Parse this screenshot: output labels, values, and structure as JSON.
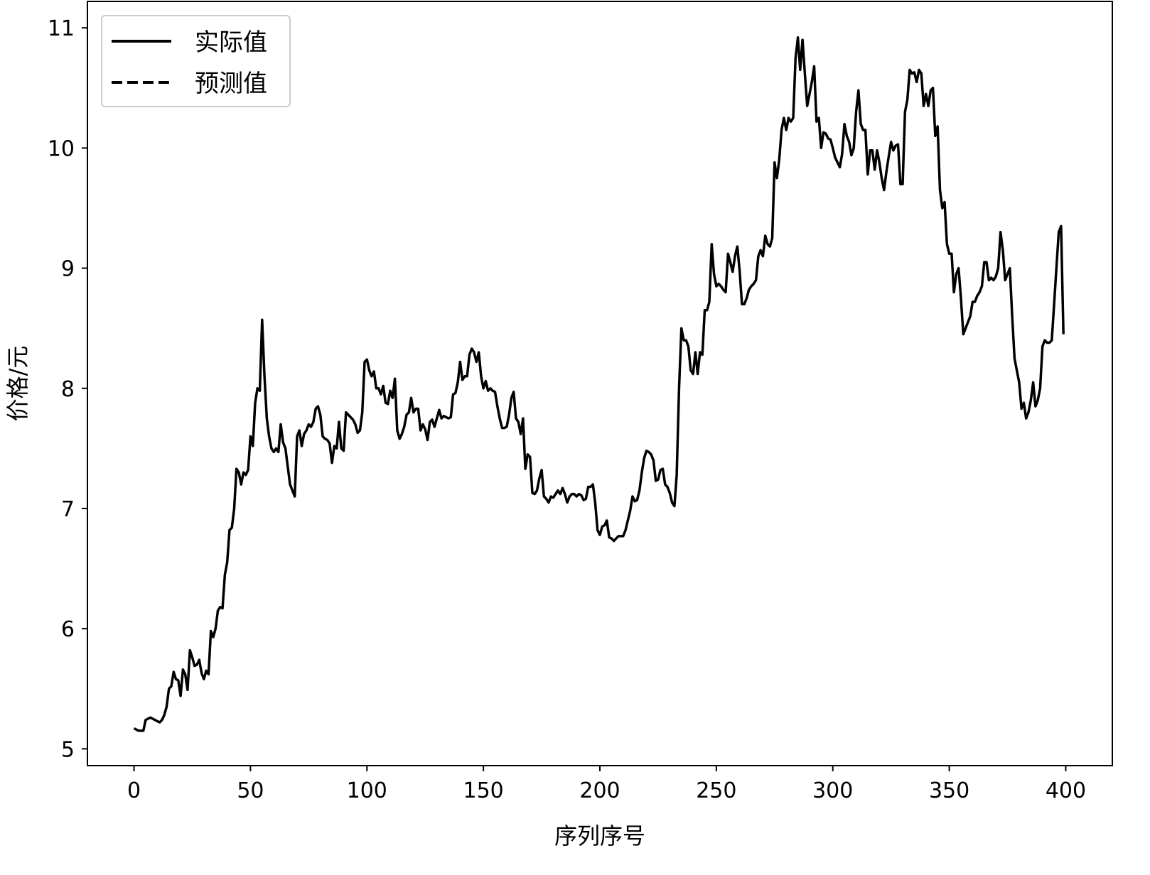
{
  "chart_data": {
    "type": "line",
    "title": "",
    "xlabel": "序列序号",
    "ylabel": "价格/元",
    "xlim": [
      -20,
      420
    ],
    "ylim": [
      4.86,
      11.22
    ],
    "xticks": [
      0,
      50,
      100,
      150,
      200,
      250,
      300,
      350,
      400
    ],
    "yticks": [
      5,
      6,
      7,
      8,
      9,
      10,
      11
    ],
    "grid": false,
    "legend_position": "top-left",
    "legend": [
      {
        "label": "实际值",
        "style": "solid"
      },
      {
        "label": "预测值",
        "style": "dashed"
      }
    ],
    "line_color": "#000000",
    "series": [
      {
        "name": "实际值",
        "style": "solid",
        "x_start": 0,
        "values": [
          5.17,
          5.16,
          5.15,
          5.15,
          5.15,
          5.24,
          5.25,
          5.26,
          5.25,
          5.24,
          5.23,
          5.22,
          5.24,
          5.28,
          5.35,
          5.5,
          5.52,
          5.64,
          5.58,
          5.57,
          5.44,
          5.66,
          5.62,
          5.49,
          5.82,
          5.76,
          5.69,
          5.7,
          5.74,
          5.63,
          5.58,
          5.65,
          5.62,
          5.98,
          5.93,
          6.0,
          6.15,
          6.18,
          6.17,
          6.45,
          6.55,
          6.82,
          6.84,
          7.0,
          7.33,
          7.3,
          7.2,
          7.3,
          7.28,
          7.32,
          7.6,
          7.52,
          7.88,
          8.0,
          7.98,
          8.57,
          8.1,
          7.75,
          7.6,
          7.5,
          7.47,
          7.5,
          7.47,
          7.7,
          7.55,
          7.5,
          7.35,
          7.2,
          7.15,
          7.1,
          7.6,
          7.65,
          7.52,
          7.62,
          7.65,
          7.7,
          7.68,
          7.72,
          7.83,
          7.85,
          7.78,
          7.6,
          7.58,
          7.57,
          7.54,
          7.38,
          7.52,
          7.5,
          7.72,
          7.5,
          7.48,
          7.8,
          7.78,
          7.76,
          7.74,
          7.7,
          7.63,
          7.65,
          7.8,
          8.22,
          8.24,
          8.15,
          8.1,
          8.14,
          8.0,
          8.0,
          7.95,
          8.02,
          7.88,
          7.87,
          7.98,
          7.92,
          8.08,
          7.65,
          7.58,
          7.62,
          7.68,
          7.78,
          7.8,
          7.92,
          7.8,
          7.83,
          7.83,
          7.65,
          7.7,
          7.66,
          7.57,
          7.72,
          7.74,
          7.68,
          7.75,
          7.82,
          7.75,
          7.77,
          7.76,
          7.75,
          7.76,
          7.95,
          7.96,
          8.05,
          8.22,
          8.07,
          8.1,
          8.1,
          8.28,
          8.33,
          8.3,
          8.22,
          8.3,
          8.1,
          8.0,
          8.06,
          7.98,
          8.0,
          7.98,
          7.97,
          7.85,
          7.75,
          7.67,
          7.67,
          7.68,
          7.78,
          7.92,
          7.97,
          7.75,
          7.72,
          7.62,
          7.75,
          7.33,
          7.45,
          7.43,
          7.13,
          7.12,
          7.15,
          7.25,
          7.32,
          7.1,
          7.08,
          7.05,
          7.1,
          7.09,
          7.12,
          7.15,
          7.12,
          7.17,
          7.12,
          7.05,
          7.1,
          7.12,
          7.12,
          7.1,
          7.12,
          7.11,
          7.07,
          7.08,
          7.18,
          7.18,
          7.2,
          7.05,
          6.82,
          6.78,
          6.85,
          6.86,
          6.9,
          6.76,
          6.75,
          6.73,
          6.75,
          6.77,
          6.77,
          6.77,
          6.82,
          6.9,
          6.98,
          7.1,
          7.06,
          7.07,
          7.15,
          7.3,
          7.42,
          7.48,
          7.47,
          7.45,
          7.4,
          7.23,
          7.24,
          7.32,
          7.33,
          7.2,
          7.18,
          7.13,
          7.05,
          7.02,
          7.28,
          8.0,
          8.5,
          8.4,
          8.4,
          8.35,
          8.15,
          8.12,
          8.3,
          8.12,
          8.3,
          8.28,
          8.65,
          8.65,
          8.72,
          9.2,
          8.95,
          8.85,
          8.87,
          8.85,
          8.82,
          8.8,
          9.12,
          9.05,
          8.97,
          9.1,
          9.18,
          8.98,
          8.7,
          8.7,
          8.75,
          8.82,
          8.85,
          8.87,
          8.9,
          9.1,
          9.15,
          9.1,
          9.27,
          9.2,
          9.18,
          9.25,
          9.88,
          9.75,
          9.9,
          10.15,
          10.25,
          10.15,
          10.25,
          10.22,
          10.25,
          10.75,
          10.92,
          10.65,
          10.9,
          10.62,
          10.35,
          10.45,
          10.55,
          10.68,
          10.22,
          10.25,
          10.0,
          10.13,
          10.12,
          10.08,
          10.07,
          10.0,
          9.92,
          9.88,
          9.84,
          9.95,
          10.2,
          10.1,
          10.05,
          9.94,
          10.0,
          10.3,
          10.48,
          10.2,
          10.15,
          10.15,
          9.78,
          9.98,
          9.98,
          9.82,
          9.98,
          9.88,
          9.75,
          9.65,
          9.8,
          9.93,
          10.05,
          9.98,
          10.02,
          10.03,
          9.7,
          9.7,
          10.3,
          10.4,
          10.65,
          10.62,
          10.63,
          10.55,
          10.65,
          10.62,
          10.35,
          10.45,
          10.35,
          10.48,
          10.5,
          10.1,
          10.18,
          9.65,
          9.5,
          9.55,
          9.2,
          9.12,
          9.12,
          8.8,
          8.95,
          9.0,
          8.75,
          8.45,
          8.5,
          8.55,
          8.6,
          8.72,
          8.72,
          8.77,
          8.8,
          8.85,
          9.05,
          9.05,
          8.9,
          8.92,
          8.9,
          8.93,
          9.0,
          9.3,
          9.15,
          8.9,
          8.95,
          9.0,
          8.6,
          8.25,
          8.15,
          8.05,
          7.83,
          7.88,
          7.75,
          7.8,
          7.9,
          8.05,
          7.85,
          7.9,
          8.0,
          8.35,
          8.4,
          8.38,
          8.38,
          8.4,
          8.7,
          9.0,
          9.3,
          9.35,
          8.45
        ]
      }
    ]
  }
}
